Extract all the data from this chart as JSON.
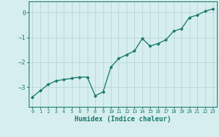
{
  "x": [
    0,
    1,
    2,
    3,
    4,
    5,
    6,
    7,
    8,
    9,
    10,
    11,
    12,
    13,
    14,
    15,
    16,
    17,
    18,
    19,
    20,
    21,
    22,
    23
  ],
  "y": [
    -3.4,
    -3.15,
    -2.9,
    -2.75,
    -2.7,
    -2.65,
    -2.6,
    -2.6,
    -3.35,
    -3.2,
    -2.2,
    -1.85,
    -1.7,
    -1.55,
    -1.05,
    -1.35,
    -1.25,
    -1.1,
    -0.75,
    -0.65,
    -0.2,
    -0.1,
    0.05,
    0.15
  ],
  "line_color": "#1a7a6e",
  "marker": "D",
  "marker_size": 2.2,
  "bg_color": "#d6eeee",
  "grid_color": "#b8d4d4",
  "axis_color": "#1a7a6e",
  "tick_color": "#1a7a6e",
  "xlabel": "Humidex (Indice chaleur)",
  "xlabel_fontsize": 7,
  "yticks": [
    0,
    -1,
    -2,
    -3
  ],
  "ylim": [
    -3.8,
    0.45
  ],
  "xlim": [
    -0.5,
    23.5
  ],
  "xtick_labels": [
    "0",
    "1",
    "2",
    "3",
    "4",
    "5",
    "6",
    "7",
    "8",
    "9",
    "10",
    "11",
    "12",
    "13",
    "14",
    "15",
    "16",
    "17",
    "18",
    "19",
    "20",
    "21",
    "22",
    "23"
  ],
  "line_width": 1.0
}
